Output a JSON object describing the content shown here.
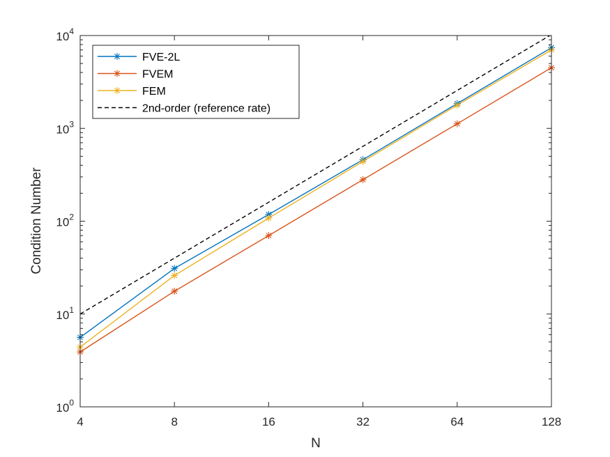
{
  "chart_data": {
    "type": "line",
    "xscale": "log2",
    "yscale": "log10",
    "xlabel": "N",
    "ylabel": "Condition Number",
    "xlim": [
      4,
      128
    ],
    "ylim": [
      1,
      10000
    ],
    "xticks": [
      4,
      8,
      16,
      32,
      64,
      128
    ],
    "xtick_labels": [
      "4",
      "8",
      "16",
      "32",
      "64",
      "128"
    ],
    "yticks": [
      1,
      10,
      100,
      1000,
      10000
    ],
    "ytick_labels": [
      {
        "base": "10",
        "exp": "0"
      },
      {
        "base": "10",
        "exp": "1"
      },
      {
        "base": "10",
        "exp": "2"
      },
      {
        "base": "10",
        "exp": "3"
      },
      {
        "base": "10",
        "exp": "4"
      }
    ],
    "x": [
      4,
      8,
      16,
      32,
      64,
      128
    ],
    "legend_position": "top-left",
    "series": [
      {
        "name": "FVE-2L",
        "color": "#0072BD",
        "marker": "star",
        "dash": "solid",
        "values": [
          5.6,
          31,
          118,
          460,
          1850,
          7400
        ]
      },
      {
        "name": "FVEM",
        "color": "#D95319",
        "marker": "star",
        "dash": "solid",
        "values": [
          3.9,
          17.6,
          70,
          280,
          1120,
          4500
        ]
      },
      {
        "name": "FEM",
        "color": "#EDB120",
        "marker": "star",
        "dash": "solid",
        "values": [
          4.4,
          26,
          108,
          440,
          1780,
          7000
        ]
      },
      {
        "name": "2nd-order (reference rate)",
        "color": "#000000",
        "marker": "none",
        "dash": "dashed",
        "values": [
          10,
          40,
          160,
          640,
          2560,
          10240
        ]
      }
    ]
  }
}
